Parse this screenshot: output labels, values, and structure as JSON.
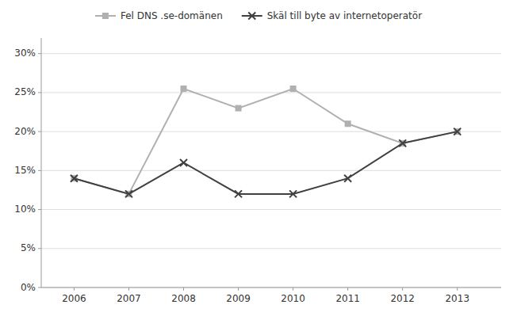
{
  "chart_data": {
    "type": "line",
    "x": [
      2006,
      2007,
      2008,
      2009,
      2010,
      2011,
      2012,
      2013
    ],
    "xlim": [
      2005.4,
      2013.8
    ],
    "xticks": [
      2006,
      2007,
      2008,
      2009,
      2010,
      2011,
      2012,
      2013
    ],
    "ylim": [
      0,
      0.32
    ],
    "yticks": [
      {
        "value": 0.0,
        "label": "0%"
      },
      {
        "value": 0.05,
        "label": "5%"
      },
      {
        "value": 0.1,
        "label": "10%"
      },
      {
        "value": 0.15,
        "label": "15%"
      },
      {
        "value": 0.2,
        "label": "20%"
      },
      {
        "value": 0.25,
        "label": "25%"
      },
      {
        "value": 0.3,
        "label": "30%"
      }
    ],
    "grid": true,
    "legend": "top",
    "series": [
      {
        "name": "Fel DNS .se-domänen",
        "color": "#b0b0b0",
        "marker": "square",
        "values": [
          0.14,
          0.12,
          0.255,
          0.23,
          0.255,
          0.21,
          0.185,
          0.2
        ]
      },
      {
        "name": "Skäl till byte av internetoperatör",
        "color": "#404040",
        "marker": "x",
        "values": [
          0.14,
          0.12,
          0.16,
          0.12,
          0.12,
          0.14,
          0.185,
          0.2
        ]
      }
    ]
  }
}
